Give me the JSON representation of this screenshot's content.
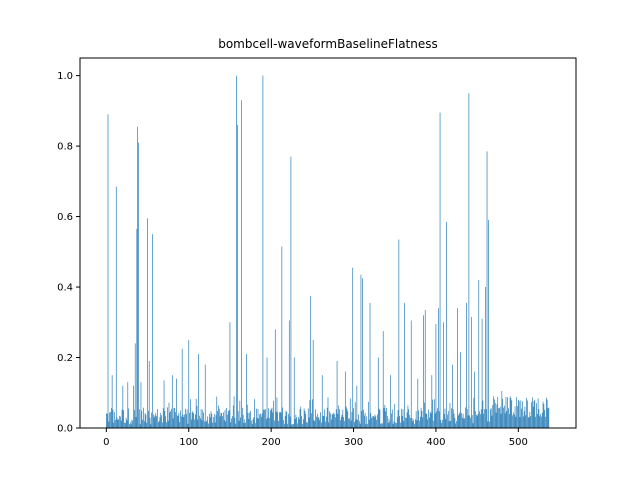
{
  "chart_data": {
    "type": "bar",
    "title": "bombcell-waveformBaselineFlatness",
    "xlabel": "",
    "ylabel": "",
    "xlim": [
      -32,
      570
    ],
    "ylim": [
      0,
      1.05
    ],
    "x_ticks": [
      0,
      100,
      200,
      300,
      400,
      500
    ],
    "y_ticks": [
      0.0,
      0.2,
      0.4,
      0.6,
      0.8,
      1.0
    ],
    "x_tick_labels": [
      "0",
      "100",
      "200",
      "300",
      "400",
      "500"
    ],
    "y_tick_labels": [
      "0.0",
      "0.2",
      "0.4",
      "0.6",
      "0.8",
      "1.0"
    ],
    "bar_color": "#1f77b4",
    "n_bars": 538,
    "baseline_range": [
      0.01,
      0.09
    ],
    "peaks": [
      [
        2,
        0.89
      ],
      [
        7,
        0.15
      ],
      [
        12,
        0.685
      ],
      [
        20,
        0.12
      ],
      [
        26,
        0.13
      ],
      [
        33,
        0.12
      ],
      [
        35,
        0.24
      ],
      [
        37,
        0.565
      ],
      [
        38,
        0.855
      ],
      [
        39,
        0.81
      ],
      [
        42,
        0.13
      ],
      [
        50,
        0.595
      ],
      [
        52,
        0.19
      ],
      [
        56,
        0.55
      ],
      [
        70,
        0.135
      ],
      [
        80,
        0.15
      ],
      [
        85,
        0.14
      ],
      [
        92,
        0.225
      ],
      [
        100,
        0.25
      ],
      [
        112,
        0.21
      ],
      [
        120,
        0.18
      ],
      [
        150,
        0.3
      ],
      [
        158,
        1.0
      ],
      [
        159,
        0.86
      ],
      [
        164,
        0.93
      ],
      [
        170,
        0.21
      ],
      [
        190,
        1.0
      ],
      [
        195,
        0.2
      ],
      [
        205,
        0.28
      ],
      [
        213,
        0.515
      ],
      [
        222,
        0.305
      ],
      [
        224,
        0.77
      ],
      [
        228,
        0.2
      ],
      [
        248,
        0.375
      ],
      [
        251,
        0.25
      ],
      [
        262,
        0.15
      ],
      [
        280,
        0.19
      ],
      [
        290,
        0.16
      ],
      [
        299,
        0.455
      ],
      [
        304,
        0.12
      ],
      [
        309,
        0.435
      ],
      [
        311,
        0.425
      ],
      [
        320,
        0.355
      ],
      [
        330,
        0.2
      ],
      [
        336,
        0.275
      ],
      [
        345,
        0.15
      ],
      [
        355,
        0.535
      ],
      [
        362,
        0.355
      ],
      [
        370,
        0.305
      ],
      [
        378,
        0.14
      ],
      [
        385,
        0.32
      ],
      [
        387,
        0.335
      ],
      [
        395,
        0.15
      ],
      [
        400,
        0.295
      ],
      [
        403,
        0.34
      ],
      [
        405,
        0.895
      ],
      [
        409,
        0.3
      ],
      [
        413,
        0.585
      ],
      [
        420,
        0.18
      ],
      [
        426,
        0.34
      ],
      [
        430,
        0.215
      ],
      [
        437,
        0.355
      ],
      [
        440,
        0.95
      ],
      [
        443,
        0.315
      ],
      [
        447,
        0.16
      ],
      [
        452,
        0.42
      ],
      [
        456,
        0.31
      ],
      [
        460,
        0.4
      ],
      [
        462,
        0.785
      ],
      [
        464,
        0.59
      ],
      [
        470,
        0.09
      ],
      [
        480,
        0.105
      ],
      [
        490,
        0.09
      ],
      [
        500,
        0.08
      ],
      [
        510,
        0.085
      ],
      [
        520,
        0.08
      ],
      [
        530,
        0.075
      ],
      [
        535,
        0.08
      ]
    ]
  }
}
